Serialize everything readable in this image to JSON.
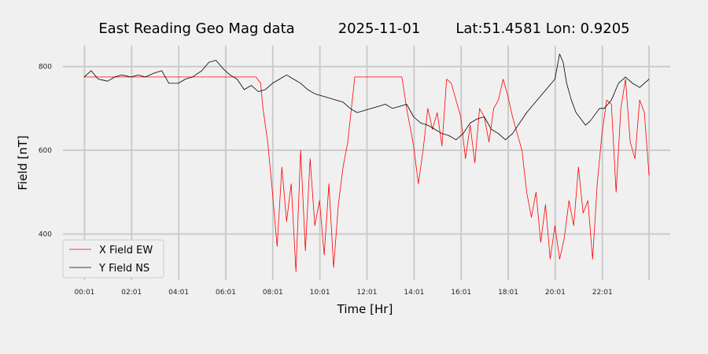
{
  "chart_data": {
    "type": "line",
    "title": "East Reading Geo Mag data",
    "title_date": "2025-11-01",
    "title_location": "Lat:51.4581  Lon: 0.9205",
    "xlabel": "Time  [Hr]",
    "ylabel": "Field  [nT]",
    "x_unit": "hours",
    "xlim": [
      -0.9,
      24.9
    ],
    "ylim": [
      290,
      850
    ],
    "x_ticks": [
      0.0167,
      2.0167,
      4.0167,
      6.0167,
      8.0167,
      10.0167,
      12.0167,
      14.0167,
      16.0167,
      18.0167,
      20.0167,
      22.0167
    ],
    "x_tick_labels": [
      "00:01",
      "02:01",
      "04:01",
      "06:01",
      "08:01",
      "10:01",
      "12:01",
      "14:01",
      "16:01",
      "18:01",
      "20:01",
      "22:01"
    ],
    "y_ticks": [
      400,
      600,
      800
    ],
    "y_tick_labels": [
      "400",
      "600",
      "800"
    ],
    "grid": true,
    "legend_position": "lower-left",
    "series": [
      {
        "name": "X Field EW",
        "color": "#ff0000",
        "x": [
          0.0,
          0.5,
          1.0,
          1.5,
          2.0,
          2.5,
          3.0,
          3.5,
          4.0,
          4.5,
          5.0,
          5.5,
          6.0,
          6.5,
          7.0,
          7.3,
          7.5,
          7.6,
          7.8,
          8.0,
          8.2,
          8.4,
          8.6,
          8.8,
          9.0,
          9.2,
          9.4,
          9.6,
          9.8,
          10.0,
          10.2,
          10.4,
          10.6,
          10.8,
          11.0,
          11.2,
          11.5,
          12.0,
          12.5,
          13.0,
          13.5,
          13.7,
          13.9,
          14.0,
          14.2,
          14.4,
          14.6,
          14.8,
          15.0,
          15.2,
          15.4,
          15.6,
          15.8,
          16.0,
          16.2,
          16.4,
          16.6,
          16.8,
          17.0,
          17.2,
          17.4,
          17.6,
          17.8,
          18.0,
          18.2,
          18.4,
          18.6,
          18.8,
          19.0,
          19.2,
          19.4,
          19.6,
          19.8,
          20.0,
          20.2,
          20.4,
          20.6,
          20.8,
          21.0,
          21.2,
          21.4,
          21.6,
          21.8,
          22.0,
          22.2,
          22.4,
          22.6,
          22.8,
          23.0,
          23.2,
          23.4,
          23.6,
          23.8,
          24.0
        ],
        "y": [
          775,
          775,
          775,
          775,
          775,
          775,
          775,
          775,
          775,
          775,
          775,
          775,
          775,
          775,
          775,
          775,
          760,
          700,
          620,
          500,
          370,
          560,
          430,
          520,
          310,
          600,
          360,
          580,
          420,
          480,
          350,
          520,
          320,
          470,
          560,
          620,
          775,
          775,
          775,
          775,
          775,
          700,
          640,
          610,
          520,
          600,
          700,
          650,
          690,
          610,
          770,
          760,
          720,
          680,
          580,
          660,
          570,
          700,
          680,
          620,
          700,
          720,
          770,
          730,
          680,
          640,
          600,
          500,
          440,
          500,
          380,
          470,
          340,
          420,
          340,
          390,
          480,
          420,
          560,
          450,
          480,
          340,
          520,
          640,
          720,
          710,
          500,
          700,
          770,
          620,
          580,
          720,
          690,
          540
        ]
      },
      {
        "name": "Y Field NS",
        "color": "#000000",
        "x": [
          0.0,
          0.3,
          0.6,
          1.0,
          1.3,
          1.6,
          2.0,
          2.3,
          2.6,
          3.0,
          3.3,
          3.6,
          4.0,
          4.3,
          4.6,
          5.0,
          5.3,
          5.6,
          5.9,
          6.2,
          6.5,
          6.8,
          7.1,
          7.4,
          7.7,
          8.0,
          8.3,
          8.6,
          8.9,
          9.2,
          9.5,
          9.8,
          10.1,
          10.4,
          10.7,
          11.0,
          11.3,
          11.6,
          11.9,
          12.2,
          12.5,
          12.8,
          13.1,
          13.4,
          13.7,
          14.0,
          14.3,
          14.6,
          14.9,
          15.2,
          15.5,
          15.8,
          16.1,
          16.4,
          16.7,
          17.0,
          17.3,
          17.6,
          17.9,
          18.2,
          18.5,
          18.8,
          19.1,
          19.4,
          19.7,
          20.0,
          20.1,
          20.2,
          20.35,
          20.5,
          20.7,
          20.9,
          21.1,
          21.3,
          21.5,
          21.7,
          21.9,
          22.1,
          22.4,
          22.7,
          23.0,
          23.3,
          23.6,
          24.0
        ],
        "y": [
          775,
          790,
          770,
          765,
          775,
          780,
          775,
          780,
          775,
          785,
          790,
          760,
          760,
          770,
          775,
          790,
          810,
          815,
          795,
          780,
          770,
          745,
          755,
          740,
          745,
          760,
          770,
          780,
          770,
          760,
          745,
          735,
          730,
          725,
          720,
          715,
          700,
          690,
          695,
          700,
          705,
          710,
          700,
          705,
          710,
          680,
          665,
          660,
          650,
          640,
          635,
          625,
          640,
          665,
          675,
          680,
          650,
          640,
          625,
          640,
          665,
          690,
          710,
          730,
          750,
          770,
          800,
          830,
          810,
          760,
          720,
          690,
          675,
          660,
          670,
          685,
          700,
          700,
          720,
          760,
          775,
          760,
          750,
          770
        ]
      }
    ]
  }
}
